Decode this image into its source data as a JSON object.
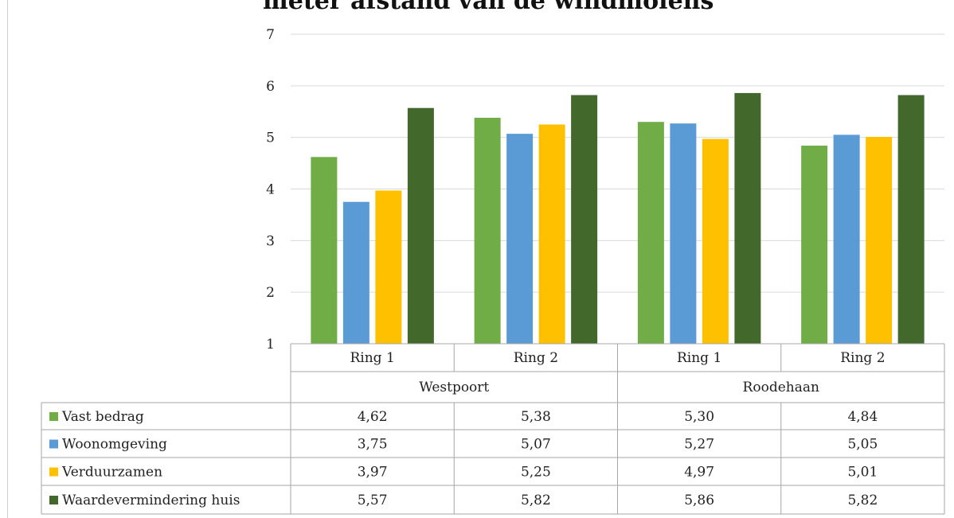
{
  "chart_data": {
    "type": "bar",
    "title": "meter afstand van de windmolens",
    "groups": [
      {
        "name": "Westpoort",
        "categories": [
          "Ring 1",
          "Ring 2"
        ]
      },
      {
        "name": "Roodehaan",
        "categories": [
          "Ring 1",
          "Ring 2"
        ]
      }
    ],
    "categories": [
      "Ring 1",
      "Ring 2",
      "Ring 1",
      "Ring 2"
    ],
    "ylim": [
      1,
      7
    ],
    "yticks": [
      1,
      2,
      3,
      4,
      5,
      6,
      7
    ],
    "grid": true,
    "legend": "data-table",
    "series": [
      {
        "name": "Vast bedrag",
        "color": "#70ad47",
        "values": [
          4.62,
          5.38,
          5.3,
          4.84
        ],
        "labels": [
          "4,62",
          "5,38",
          "5,30",
          "4,84"
        ]
      },
      {
        "name": "Woonomgeving",
        "color": "#5b9bd5",
        "values": [
          3.75,
          5.07,
          5.27,
          5.05
        ],
        "labels": [
          "3,75",
          "5,07",
          "5,27",
          "5,05"
        ]
      },
      {
        "name": "Verduurzamen",
        "color": "#ffc000",
        "values": [
          3.97,
          5.25,
          4.97,
          5.01
        ],
        "labels": [
          "3,97",
          "5,25",
          "4,97",
          "5,01"
        ]
      },
      {
        "name": "Waardevermindering huis",
        "color": "#43682b",
        "values": [
          5.57,
          5.82,
          5.86,
          5.82
        ],
        "labels": [
          "5,57",
          "5,82",
          "5,86",
          "5,82"
        ]
      }
    ]
  }
}
